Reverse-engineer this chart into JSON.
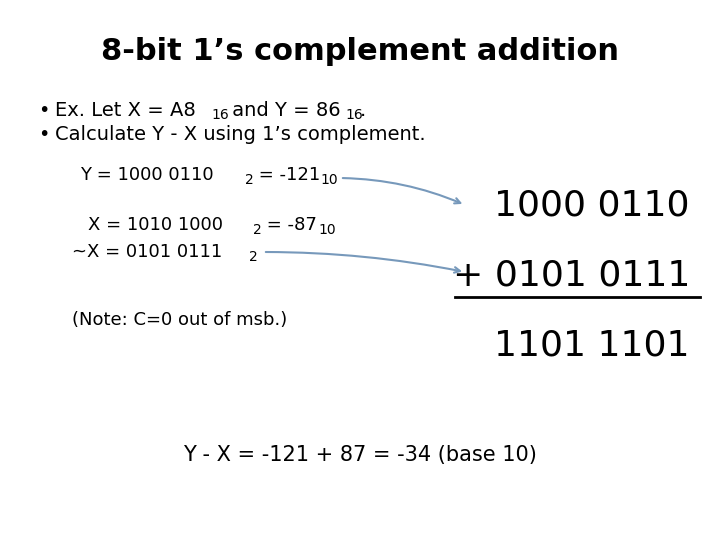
{
  "title": "8-bit 1’s complement addition",
  "background_color": "#ffffff",
  "text_color": "#000000",
  "arrow_color": "#7799bb",
  "big_row1": "1000 0110",
  "big_row2": "+ 0101 0111",
  "big_row3": "1101 1101",
  "note": "(Note: C=0 out of msb.)",
  "result": "Y - X = -121 + 87 = -34 (base 10)",
  "title_fontsize": 22,
  "body_fontsize": 14,
  "small_fontsize": 10,
  "indent_fontsize": 13,
  "big_fontsize": 26,
  "result_fontsize": 15
}
